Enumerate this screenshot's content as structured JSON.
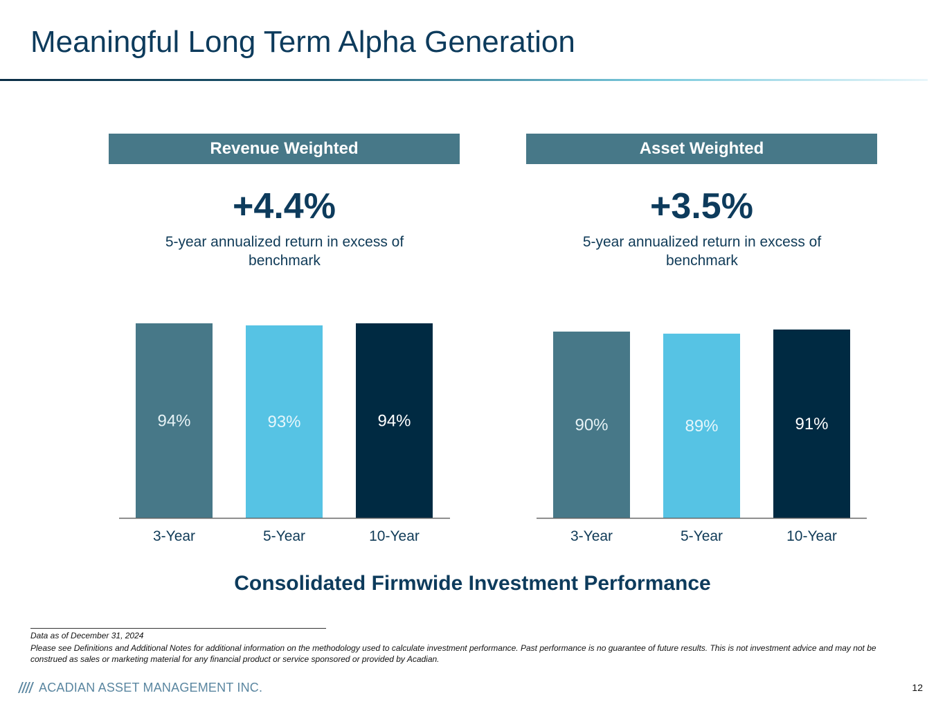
{
  "title": "Meaningful Long Term Alpha Generation",
  "panels": [
    {
      "header": "Revenue Weighted",
      "big_value": "+4.4%",
      "subtext": "5-year annualized return in excess of benchmark"
    },
    {
      "header": "Asset Weighted",
      "big_value": "+3.5%",
      "subtext": "5-year annualized return in excess of benchmark"
    }
  ],
  "chart_title": "Consolidated Firmwide Investment Performance",
  "chart_data": [
    {
      "type": "bar",
      "title": "Revenue Weighted",
      "categories": [
        "3-Year",
        "5-Year",
        "10-Year"
      ],
      "values": [
        94,
        93,
        94
      ],
      "value_labels": [
        "94%",
        "93%",
        "94%"
      ],
      "colors": [
        "#477888",
        "#56c3e4",
        "#002a42"
      ],
      "label_colors": [
        "#e6f2f5",
        "#e6f6fb",
        "#ffffff"
      ],
      "ylim": [
        0,
        100
      ],
      "xlabel": "",
      "ylabel": ""
    },
    {
      "type": "bar",
      "title": "Asset Weighted",
      "categories": [
        "3-Year",
        "5-Year",
        "10-Year"
      ],
      "values": [
        90,
        89,
        91
      ],
      "value_labels": [
        "90%",
        "89%",
        "91%"
      ],
      "colors": [
        "#477888",
        "#56c3e4",
        "#002a42"
      ],
      "label_colors": [
        "#e6f2f5",
        "#e6f6fb",
        "#ffffff"
      ],
      "ylim": [
        0,
        100
      ],
      "xlabel": "",
      "ylabel": ""
    }
  ],
  "footer": {
    "date": "Data as of December 31, 2024",
    "note": "Please see Definitions and Additional Notes for additional information on the methodology used to calculate investment performance. Past performance is no guarantee of future results. This is not investment advice and may not be construed as sales or marketing material for any financial product or service sponsored or provided by Acadian.",
    "logo_text": "ACADIAN ASSET MANAGEMENT INC.",
    "page_number": "12"
  }
}
